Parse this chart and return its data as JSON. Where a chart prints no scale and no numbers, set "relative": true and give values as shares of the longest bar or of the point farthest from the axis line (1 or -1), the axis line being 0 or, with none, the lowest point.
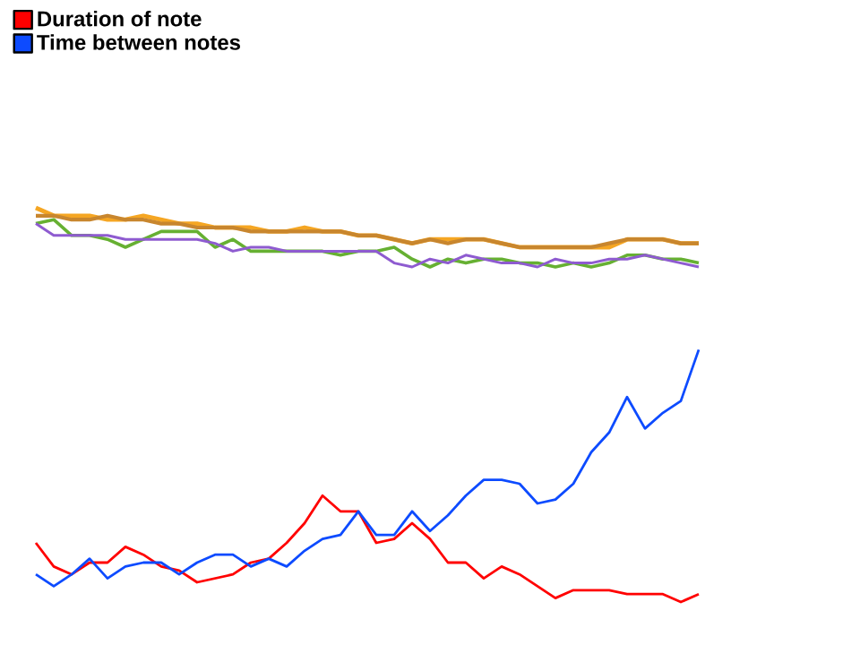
{
  "chart_data": {
    "type": "line",
    "relative": true,
    "legend": "top left",
    "categories": [
      null,
      null,
      null,
      null,
      null,
      null,
      null,
      null,
      null,
      null,
      null,
      null,
      null,
      null,
      null,
      null,
      null,
      null,
      null,
      null,
      null,
      null,
      null,
      null,
      null,
      null,
      null,
      null,
      null,
      null,
      null,
      null,
      null,
      null,
      null,
      null,
      null,
      null
    ],
    "series": [
      {
        "color": "#f5a623",
        "values": [
          1,
          0.98,
          0.98,
          0.98,
          0.97,
          0.97,
          0.98,
          0.97,
          0.96,
          0.96,
          0.95,
          0.95,
          0.95,
          0.94,
          0.94,
          0.95,
          0.94,
          0.94,
          0.93,
          0.93,
          0.92,
          0.91,
          0.92,
          0.92,
          0.92,
          0.92,
          0.91,
          0.9,
          0.9,
          0.9,
          0.9,
          0.9,
          0.9,
          0.92,
          0.92,
          0.92,
          0.91,
          0.91
        ]
      },
      {
        "color": "#c8862e",
        "values": [
          0.98,
          0.98,
          0.97,
          0.97,
          0.98,
          0.97,
          0.97,
          0.96,
          0.96,
          0.95,
          0.95,
          0.95,
          0.94,
          0.94,
          0.94,
          0.94,
          0.94,
          0.94,
          0.93,
          0.93,
          0.92,
          0.91,
          0.92,
          0.91,
          0.92,
          0.92,
          0.91,
          0.9,
          0.9,
          0.9,
          0.9,
          0.9,
          0.91,
          0.92,
          0.92,
          0.92,
          0.91,
          0.91
        ]
      },
      {
        "color": "#66b032",
        "values": [
          0.96,
          0.97,
          0.93,
          0.93,
          0.92,
          0.9,
          0.92,
          0.94,
          0.94,
          0.94,
          0.9,
          0.92,
          0.89,
          0.89,
          0.89,
          0.89,
          0.89,
          0.88,
          0.89,
          0.89,
          0.9,
          0.87,
          0.85,
          0.87,
          0.86,
          0.87,
          0.87,
          0.86,
          0.86,
          0.85,
          0.86,
          0.85,
          0.86,
          0.88,
          0.88,
          0.87,
          0.87,
          0.86
        ]
      },
      {
        "color": "#8e5bd0",
        "values": [
          0.96,
          0.93,
          0.93,
          0.93,
          0.93,
          0.92,
          0.92,
          0.92,
          0.92,
          0.92,
          0.91,
          0.89,
          0.9,
          0.9,
          0.89,
          0.89,
          0.89,
          0.89,
          0.89,
          0.89,
          0.86,
          0.85,
          0.87,
          0.86,
          0.88,
          0.87,
          0.86,
          0.86,
          0.85,
          0.87,
          0.86,
          0.86,
          0.87,
          0.87,
          0.88,
          0.87,
          0.86,
          0.85
        ]
      },
      {
        "name": "Duration of note",
        "color": "#ff0000",
        "values": [
          0.15,
          0.09,
          0.07,
          0.1,
          0.1,
          0.14,
          0.12,
          0.09,
          0.08,
          0.05,
          0.06,
          0.07,
          0.1,
          0.11,
          0.15,
          0.2,
          0.27,
          0.23,
          0.23,
          0.15,
          0.16,
          0.2,
          0.16,
          0.1,
          0.1,
          0.06,
          0.09,
          0.07,
          0.04,
          0.01,
          0.03,
          0.03,
          0.03,
          0.02,
          0.02,
          0.02,
          0,
          0.02
        ]
      },
      {
        "name": "Time between notes",
        "color": "#0d4bff",
        "values": [
          0.07,
          0.04,
          0.07,
          0.11,
          0.06,
          0.09,
          0.1,
          0.1,
          0.07,
          0.1,
          0.12,
          0.12,
          0.09,
          0.11,
          0.09,
          0.13,
          0.16,
          0.17,
          0.23,
          0.17,
          0.17,
          0.23,
          0.18,
          0.22,
          0.27,
          0.31,
          0.31,
          0.3,
          0.25,
          0.26,
          0.3,
          0.38,
          0.43,
          0.52,
          0.44,
          0.48,
          0.51,
          0.64
        ]
      }
    ]
  }
}
